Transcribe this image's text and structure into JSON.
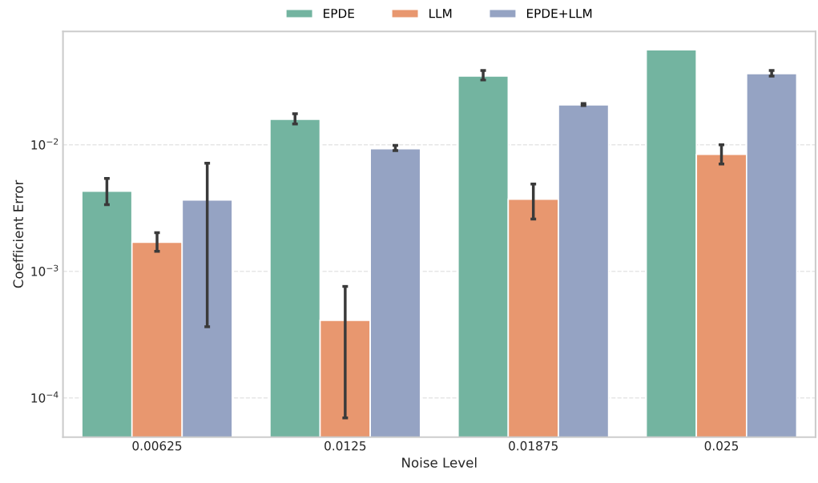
{
  "chart_data": {
    "type": "bar",
    "xlabel": "Noise Level",
    "ylabel": "Coefficient Error",
    "categories": [
      "0.00625",
      "0.0125",
      "0.01875",
      "0.025"
    ],
    "series": [
      {
        "name": "EPDE",
        "color": "#73b4a0",
        "values": [
          0.0043,
          0.0159,
          0.0349,
          0.0564
        ],
        "errors": [
          [
            0.00336,
            0.00543
          ],
          [
            0.0146,
            0.0176
          ],
          [
            0.0325,
            0.0386
          ],
          null
        ]
      },
      {
        "name": "LLM",
        "color": "#e8976f",
        "values": [
          0.0017,
          0.00041,
          0.00372,
          0.0084
        ],
        "errors": [
          [
            0.00144,
            0.00202
          ],
          [
            6.95e-05,
            0.00076
          ],
          [
            0.00259,
            0.0049
          ],
          [
            0.00706,
            0.01
          ]
        ]
      },
      {
        "name": "EPDE+LLM",
        "color": "#95a3c3",
        "values": [
          0.00367,
          0.0093,
          0.0207,
          0.0365
        ],
        "errors": [
          [
            0.000365,
            0.00716
          ],
          [
            0.009,
            0.0099
          ],
          [
            0.0204,
            0.0212
          ],
          [
            0.0349,
            0.0386
          ]
        ]
      }
    ],
    "log": "y",
    "ylim": [
      4.9e-05,
      0.0787
    ],
    "yticks": [
      {
        "value": 0.0001,
        "label": "10$^{−4}$"
      },
      {
        "value": 0.001,
        "label": "10$^{−3}$"
      },
      {
        "value": 0.01,
        "label": "10$^{−2}$"
      }
    ],
    "grid": "y",
    "legend": "top"
  }
}
